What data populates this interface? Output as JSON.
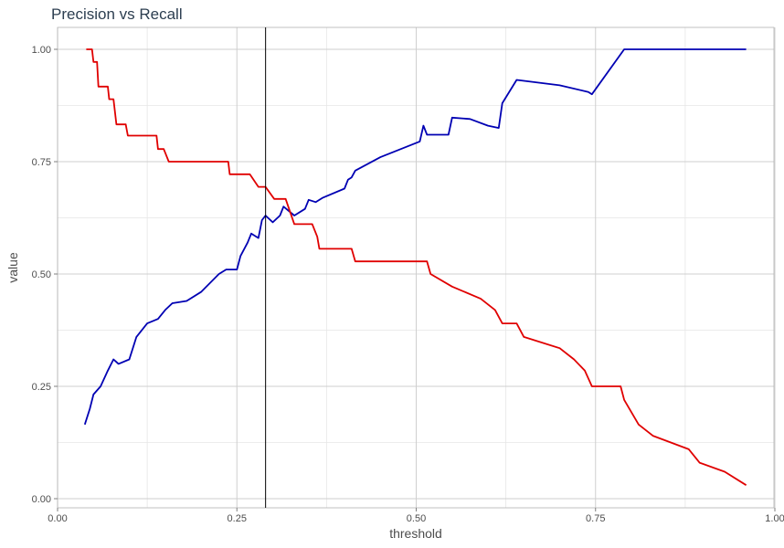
{
  "chart_data": {
    "type": "line",
    "title": "Precision vs Recall",
    "xlabel": "threshold",
    "ylabel": "value",
    "xlim": [
      0,
      1
    ],
    "ylim": [
      0,
      1
    ],
    "x_ticks": [
      "0.00",
      "0.25",
      "0.50",
      "0.75",
      "1.00"
    ],
    "y_ticks": [
      "0.00",
      "0.25",
      "0.50",
      "0.75",
      "1.00"
    ],
    "grid": true,
    "legend": "none",
    "vline_x": 0.29,
    "series": [
      {
        "color": "#0000b3",
        "points": [
          [
            0.038,
            0.165
          ],
          [
            0.045,
            0.2
          ],
          [
            0.05,
            0.232
          ],
          [
            0.06,
            0.25
          ],
          [
            0.07,
            0.285
          ],
          [
            0.078,
            0.31
          ],
          [
            0.085,
            0.3
          ],
          [
            0.1,
            0.31
          ],
          [
            0.11,
            0.36
          ],
          [
            0.125,
            0.39
          ],
          [
            0.14,
            0.4
          ],
          [
            0.15,
            0.42
          ],
          [
            0.16,
            0.435
          ],
          [
            0.18,
            0.44
          ],
          [
            0.2,
            0.46
          ],
          [
            0.225,
            0.5
          ],
          [
            0.235,
            0.51
          ],
          [
            0.25,
            0.51
          ],
          [
            0.255,
            0.54
          ],
          [
            0.265,
            0.57
          ],
          [
            0.27,
            0.59
          ],
          [
            0.28,
            0.58
          ],
          [
            0.285,
            0.62
          ],
          [
            0.29,
            0.63
          ],
          [
            0.3,
            0.615
          ],
          [
            0.31,
            0.63
          ],
          [
            0.315,
            0.65
          ],
          [
            0.33,
            0.63
          ],
          [
            0.345,
            0.645
          ],
          [
            0.35,
            0.665
          ],
          [
            0.36,
            0.66
          ],
          [
            0.37,
            0.67
          ],
          [
            0.4,
            0.69
          ],
          [
            0.405,
            0.71
          ],
          [
            0.41,
            0.715
          ],
          [
            0.415,
            0.73
          ],
          [
            0.45,
            0.76
          ],
          [
            0.505,
            0.795
          ],
          [
            0.51,
            0.83
          ],
          [
            0.515,
            0.81
          ],
          [
            0.545,
            0.81
          ],
          [
            0.55,
            0.848
          ],
          [
            0.575,
            0.845
          ],
          [
            0.6,
            0.83
          ],
          [
            0.615,
            0.825
          ],
          [
            0.62,
            0.88
          ],
          [
            0.64,
            0.932
          ],
          [
            0.7,
            0.92
          ],
          [
            0.74,
            0.905
          ],
          [
            0.745,
            0.9
          ],
          [
            0.79,
            1.0
          ],
          [
            0.96,
            1.0
          ]
        ]
      },
      {
        "color": "#e00000",
        "points": [
          [
            0.04,
            1.0
          ],
          [
            0.048,
            1.0
          ],
          [
            0.05,
            0.972
          ],
          [
            0.055,
            0.972
          ],
          [
            0.057,
            0.917
          ],
          [
            0.07,
            0.917
          ],
          [
            0.072,
            0.889
          ],
          [
            0.078,
            0.889
          ],
          [
            0.082,
            0.833
          ],
          [
            0.095,
            0.833
          ],
          [
            0.098,
            0.808
          ],
          [
            0.138,
            0.808
          ],
          [
            0.14,
            0.778
          ],
          [
            0.148,
            0.778
          ],
          [
            0.155,
            0.75
          ],
          [
            0.238,
            0.75
          ],
          [
            0.24,
            0.722
          ],
          [
            0.268,
            0.722
          ],
          [
            0.28,
            0.694
          ],
          [
            0.29,
            0.694
          ],
          [
            0.302,
            0.667
          ],
          [
            0.318,
            0.667
          ],
          [
            0.33,
            0.611
          ],
          [
            0.355,
            0.611
          ],
          [
            0.362,
            0.583
          ],
          [
            0.365,
            0.556
          ],
          [
            0.41,
            0.556
          ],
          [
            0.415,
            0.528
          ],
          [
            0.515,
            0.528
          ],
          [
            0.52,
            0.5
          ],
          [
            0.55,
            0.472
          ],
          [
            0.59,
            0.445
          ],
          [
            0.61,
            0.42
          ],
          [
            0.62,
            0.39
          ],
          [
            0.64,
            0.39
          ],
          [
            0.65,
            0.36
          ],
          [
            0.7,
            0.335
          ],
          [
            0.72,
            0.31
          ],
          [
            0.735,
            0.285
          ],
          [
            0.745,
            0.25
          ],
          [
            0.785,
            0.25
          ],
          [
            0.79,
            0.22
          ],
          [
            0.81,
            0.165
          ],
          [
            0.83,
            0.14
          ],
          [
            0.88,
            0.11
          ],
          [
            0.895,
            0.08
          ],
          [
            0.93,
            0.06
          ],
          [
            0.96,
            0.03
          ]
        ]
      }
    ]
  }
}
